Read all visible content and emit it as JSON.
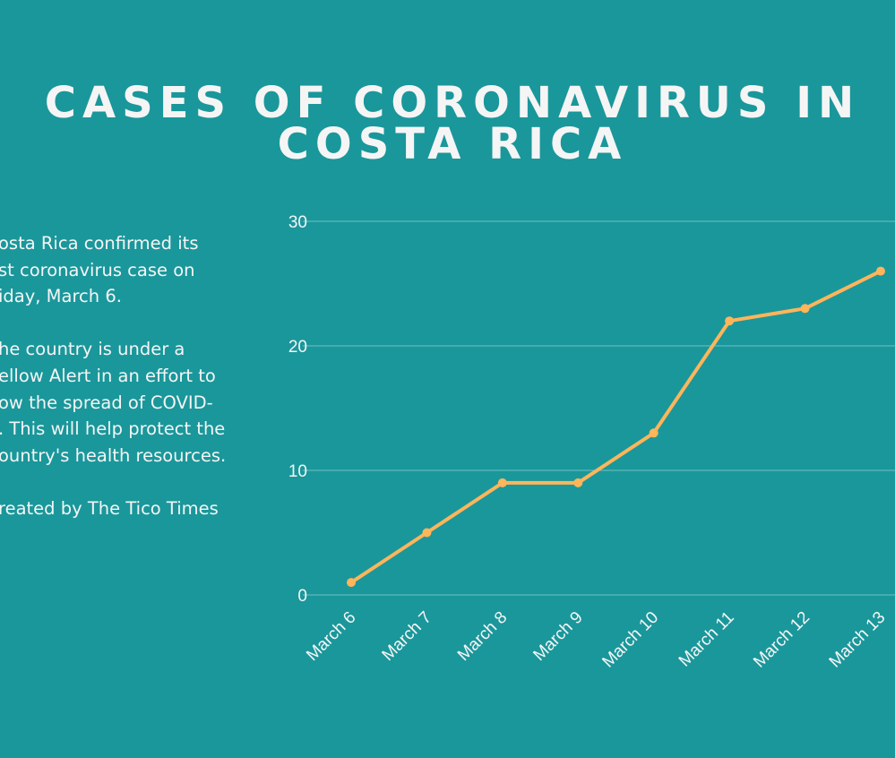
{
  "title": {
    "line1": "CASES OF CORONAVIRUS IN",
    "line2": "COSTA RICA"
  },
  "body_text": {
    "paragraph1": [
      "osta Rica confirmed its",
      "st coronavirus case on",
      "iday, March 6."
    ],
    "paragraph2": [
      "he country is under a",
      "ellow Alert in an effort to",
      "ow the spread of COVID-",
      ". This will help protect the",
      "ountry's health resources."
    ],
    "credit": "reated by The Tico Times"
  },
  "colors": {
    "background": "#1a979b",
    "line": "#ffb55a",
    "text": "#f5f5f5",
    "grid": "#6fc0c2"
  },
  "chart_data": {
    "type": "line",
    "categories": [
      "March 6",
      "March 7",
      "March 8",
      "March 9",
      "March 10",
      "March 11",
      "March 12",
      "March 13"
    ],
    "values": [
      1,
      5,
      9,
      9,
      13,
      22,
      23,
      26
    ],
    "ylim": [
      0,
      30
    ],
    "yticks": [
      "0",
      "10",
      "20",
      "30"
    ],
    "grid": true,
    "markers": true
  }
}
